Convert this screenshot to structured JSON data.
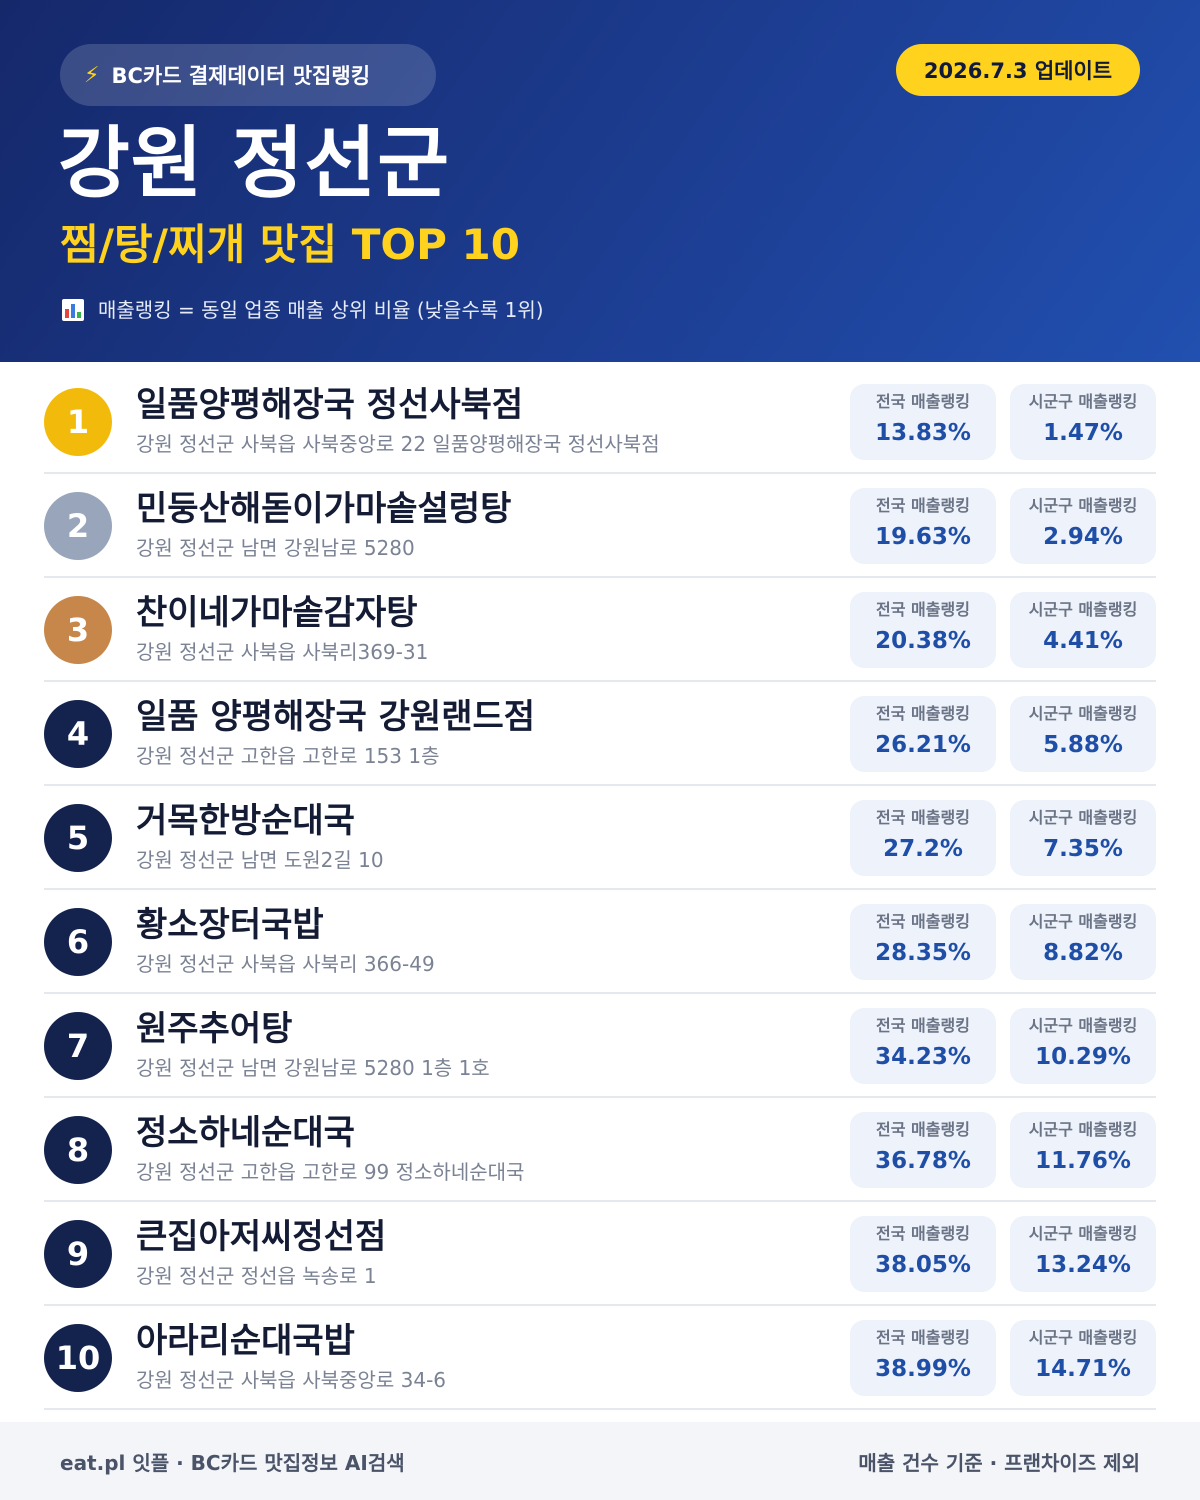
{
  "header": {
    "source_label": "BC카드 결제데이터 맛집랭킹",
    "update_label": "2026.7.3 업데이트",
    "region": "강원 정선군",
    "category_title": "찜/탕/찌개 맛집 TOP 10",
    "legend_text": "매출랭킹 = 동일 업종 매출 상위 비율 (낮을수록 1위)",
    "icons": {
      "source": "lightning-icon",
      "legend": "bar-chart-icon"
    },
    "colors": {
      "accent": "#ffd21e",
      "background_start": "#15286a",
      "background_end": "#2150b0"
    }
  },
  "stat_labels": {
    "national": "전국 매출랭킹",
    "local": "시군구 매출랭킹"
  },
  "rank_colors": {
    "gold": "#f2bb0c",
    "silver": "#98a5ba",
    "bronze": "#c7874a",
    "default": "#14224e"
  },
  "restaurants": [
    {
      "rank": "1",
      "name": "일품양평해장국 정선사북점",
      "address": "강원 정선군 사북읍 사북중앙로 22 일품양평해장국 정선사북점",
      "national": "13.83%",
      "local": "1.47%"
    },
    {
      "rank": "2",
      "name": "민둥산해돋이가마솥설렁탕",
      "address": "강원 정선군 남면 강원남로 5280",
      "national": "19.63%",
      "local": "2.94%"
    },
    {
      "rank": "3",
      "name": "찬이네가마솥감자탕",
      "address": "강원 정선군 사북읍 사북리369-31",
      "national": "20.38%",
      "local": "4.41%"
    },
    {
      "rank": "4",
      "name": "일품 양평해장국 강원랜드점",
      "address": "강원 정선군 고한읍 고한로 153 1층",
      "national": "26.21%",
      "local": "5.88%"
    },
    {
      "rank": "5",
      "name": "거목한방순대국",
      "address": "강원 정선군 남면 도원2길 10",
      "national": "27.2%",
      "local": "7.35%"
    },
    {
      "rank": "6",
      "name": "황소장터국밥",
      "address": "강원 정선군 사북읍 사북리 366-49",
      "national": "28.35%",
      "local": "8.82%"
    },
    {
      "rank": "7",
      "name": "원주추어탕",
      "address": "강원 정선군 남면 강원남로 5280 1층 1호",
      "national": "34.23%",
      "local": "10.29%"
    },
    {
      "rank": "8",
      "name": "정소하네순대국",
      "address": "강원 정선군 고한읍 고한로 99 정소하네순대국",
      "national": "36.78%",
      "local": "11.76%"
    },
    {
      "rank": "9",
      "name": "큰집아저씨정선점",
      "address": "강원 정선군 정선읍 녹송로 1",
      "national": "38.05%",
      "local": "13.24%"
    },
    {
      "rank": "10",
      "name": "아라리순대국밥",
      "address": "강원 정선군 사북읍 사북중앙로 34-6",
      "national": "38.99%",
      "local": "14.71%"
    }
  ],
  "footer": {
    "left": "eat.pl 잇플 · BC카드 맛집정보 AI검색",
    "right": "매출 건수 기준 · 프랜차이즈 제외"
  }
}
